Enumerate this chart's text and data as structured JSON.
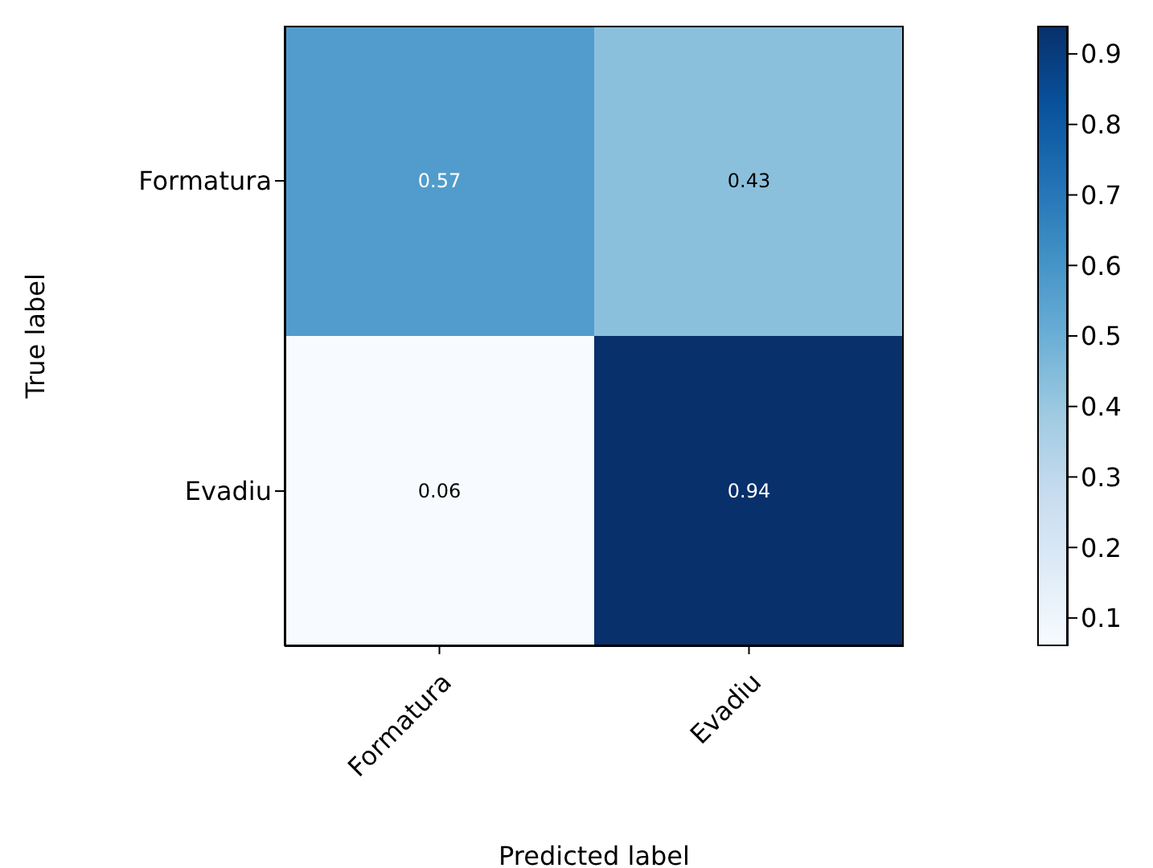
{
  "chart_data": {
    "type": "heatmap",
    "xlabel": "Predicted label",
    "ylabel": "True label",
    "categories": [
      "Formatura",
      "Evadiu"
    ],
    "y_categories": [
      "Formatura",
      "Evadiu"
    ],
    "cells": [
      [
        0.57,
        0.43
      ],
      [
        0.06,
        0.94
      ]
    ],
    "data_labels": true,
    "clim": [
      0.06,
      0.94
    ],
    "cticks": [
      0.1,
      0.2,
      0.3,
      0.4,
      0.5,
      0.6,
      0.7,
      0.8,
      0.9
    ]
  }
}
